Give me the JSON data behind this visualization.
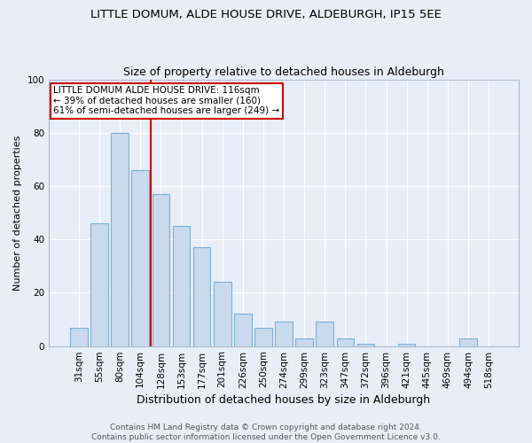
{
  "title": "LITTLE DOMUM, ALDE HOUSE DRIVE, ALDEBURGH, IP15 5EE",
  "subtitle": "Size of property relative to detached houses in Aldeburgh",
  "xlabel": "Distribution of detached houses by size in Aldeburgh",
  "ylabel": "Number of detached properties",
  "categories": [
    "31sqm",
    "55sqm",
    "80sqm",
    "104sqm",
    "128sqm",
    "153sqm",
    "177sqm",
    "201sqm",
    "226sqm",
    "250sqm",
    "274sqm",
    "299sqm",
    "323sqm",
    "347sqm",
    "372sqm",
    "396sqm",
    "421sqm",
    "445sqm",
    "469sqm",
    "494sqm",
    "518sqm"
  ],
  "values": [
    7,
    46,
    80,
    66,
    57,
    45,
    37,
    24,
    12,
    7,
    9,
    3,
    9,
    3,
    1,
    0,
    1,
    0,
    0,
    3,
    0
  ],
  "bar_color": "#c9d9ee",
  "bar_edge_color": "#7bafd4",
  "vline_x": 3.5,
  "vline_color": "#cc0000",
  "ylim": [
    0,
    100
  ],
  "annotation_text": "LITTLE DOMUM ALDE HOUSE DRIVE: 116sqm\n← 39% of detached houses are smaller (160)\n61% of semi-detached houses are larger (249) →",
  "annotation_box_color": "#ffffff",
  "annotation_box_edge_color": "#cc0000",
  "footnote": "Contains HM Land Registry data © Crown copyright and database right 2024.\nContains public sector information licensed under the Open Government Licence v3.0.",
  "background_color": "#e8eef8",
  "grid_color": "#ffffff",
  "title_fontsize": 9.5,
  "subtitle_fontsize": 9,
  "xlabel_fontsize": 9,
  "ylabel_fontsize": 8,
  "tick_fontsize": 7.5,
  "annotation_fontsize": 7.5,
  "footnote_fontsize": 6.5
}
